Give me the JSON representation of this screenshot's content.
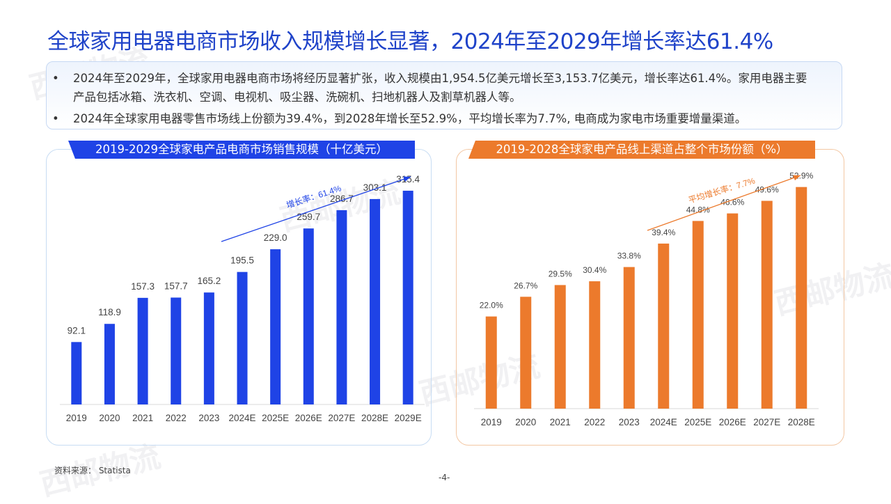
{
  "title": "全球家用电器电商市场收入规模增长显著，2024年至2029年增长率达61.4%",
  "bullets": [
    "2024年至2029年，全球家用电器电商市场将经历显著扩张，收入规模由1,954.5亿美元增长至3,153.7亿美元，增长率达61.4%。家用电器主要产品包括冰箱、洗衣机、空调、电视机、吸尘器、洗碗机、扫地机器人及割草机器人等。",
    "2024年全球家用电器零售市场线上份额为39.4%，到2028年增长至52.9%，平均增长率为7.7%, 电商成为家电市场重要增量渠道。"
  ],
  "bullet_symbol": "•",
  "watermark": "西邮物流",
  "chart_data": [
    {
      "type": "bar",
      "title": "2019-2029全球家电产品电商市场销售规模（十亿美元）",
      "categories": [
        "2019",
        "2020",
        "2021",
        "2022",
        "2023",
        "2024E",
        "2025E",
        "2026E",
        "2027E",
        "2028E",
        "2029E"
      ],
      "values": [
        92.1,
        118.9,
        157.3,
        157.7,
        165.2,
        195.5,
        229.0,
        259.7,
        286.7,
        303.1,
        315.4
      ],
      "value_labels": [
        "92.1",
        "118.9",
        "157.3",
        "157.7",
        "165.2",
        "195.5",
        "229.0",
        "259.7",
        "286.7",
        "303.1",
        "315.4"
      ],
      "annotation": "增长率：61.4%",
      "color": "#1f43e6",
      "ylim": [
        0,
        340
      ]
    },
    {
      "type": "bar",
      "title": "2019-2028全球家电产品线上渠道占整个市场份额（%）",
      "categories": [
        "2019",
        "2020",
        "2021",
        "2022",
        "2023",
        "2024E",
        "2025E",
        "2026E",
        "2027E",
        "2028E"
      ],
      "values": [
        22.0,
        26.7,
        29.5,
        30.4,
        33.8,
        39.4,
        44.8,
        46.6,
        49.6,
        52.9
      ],
      "value_labels": [
        "22.0%",
        "26.7%",
        "29.5%",
        "30.4%",
        "33.8%",
        "39.4%",
        "44.8%",
        "46.6%",
        "49.6%",
        "52.9%"
      ],
      "annotation": "平均增长率：7.7%",
      "color": "#ec7a2c",
      "ylim": [
        0,
        56
      ]
    }
  ],
  "source": "资料来源：  Statista",
  "page_number": "-4-"
}
